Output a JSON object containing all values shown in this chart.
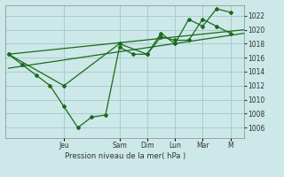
{
  "background_color": "#cce8e8",
  "grid_color": "#aacccc",
  "line_color": "#1a6b1a",
  "marker_color": "#1a6b1a",
  "xlabel": "Pression niveau de la mer( hPa )",
  "ylim": [
    1004.5,
    1023.5
  ],
  "yticks": [
    1006,
    1008,
    1010,
    1012,
    1014,
    1016,
    1018,
    1020,
    1022
  ],
  "day_labels": [
    "Jeu",
    "Sam",
    "Dim",
    "Lun",
    "Mar",
    "M"
  ],
  "day_positions": [
    2.0,
    4.0,
    5.0,
    6.0,
    7.0,
    8.0
  ],
  "xlim": [
    -0.1,
    8.5
  ],
  "series1_x": [
    0,
    0.5,
    1.0,
    1.5,
    2.0,
    2.5,
    3.0,
    3.5,
    4.0,
    4.5,
    5.0,
    5.5,
    6.0,
    6.5,
    7.0,
    7.5,
    8.0
  ],
  "series1_y": [
    1016.5,
    1015.0,
    1013.5,
    1012.0,
    1009.0,
    1006.0,
    1007.5,
    1007.8,
    1017.5,
    1016.5,
    1016.5,
    1019.0,
    1018.5,
    1018.5,
    1021.5,
    1020.5,
    1019.5
  ],
  "series2_x": [
    0,
    2,
    4,
    5,
    5.5,
    6,
    6.5,
    7,
    7.5,
    8
  ],
  "series2_y": [
    1016.5,
    1012.0,
    1018.0,
    1016.5,
    1019.5,
    1018.0,
    1021.5,
    1020.5,
    1023.0,
    1022.5
  ],
  "trend1_x": [
    0,
    8.5
  ],
  "trend1_y": [
    1016.5,
    1020.0
  ],
  "trend2_x": [
    0,
    8.5
  ],
  "trend2_y": [
    1014.5,
    1019.5
  ]
}
